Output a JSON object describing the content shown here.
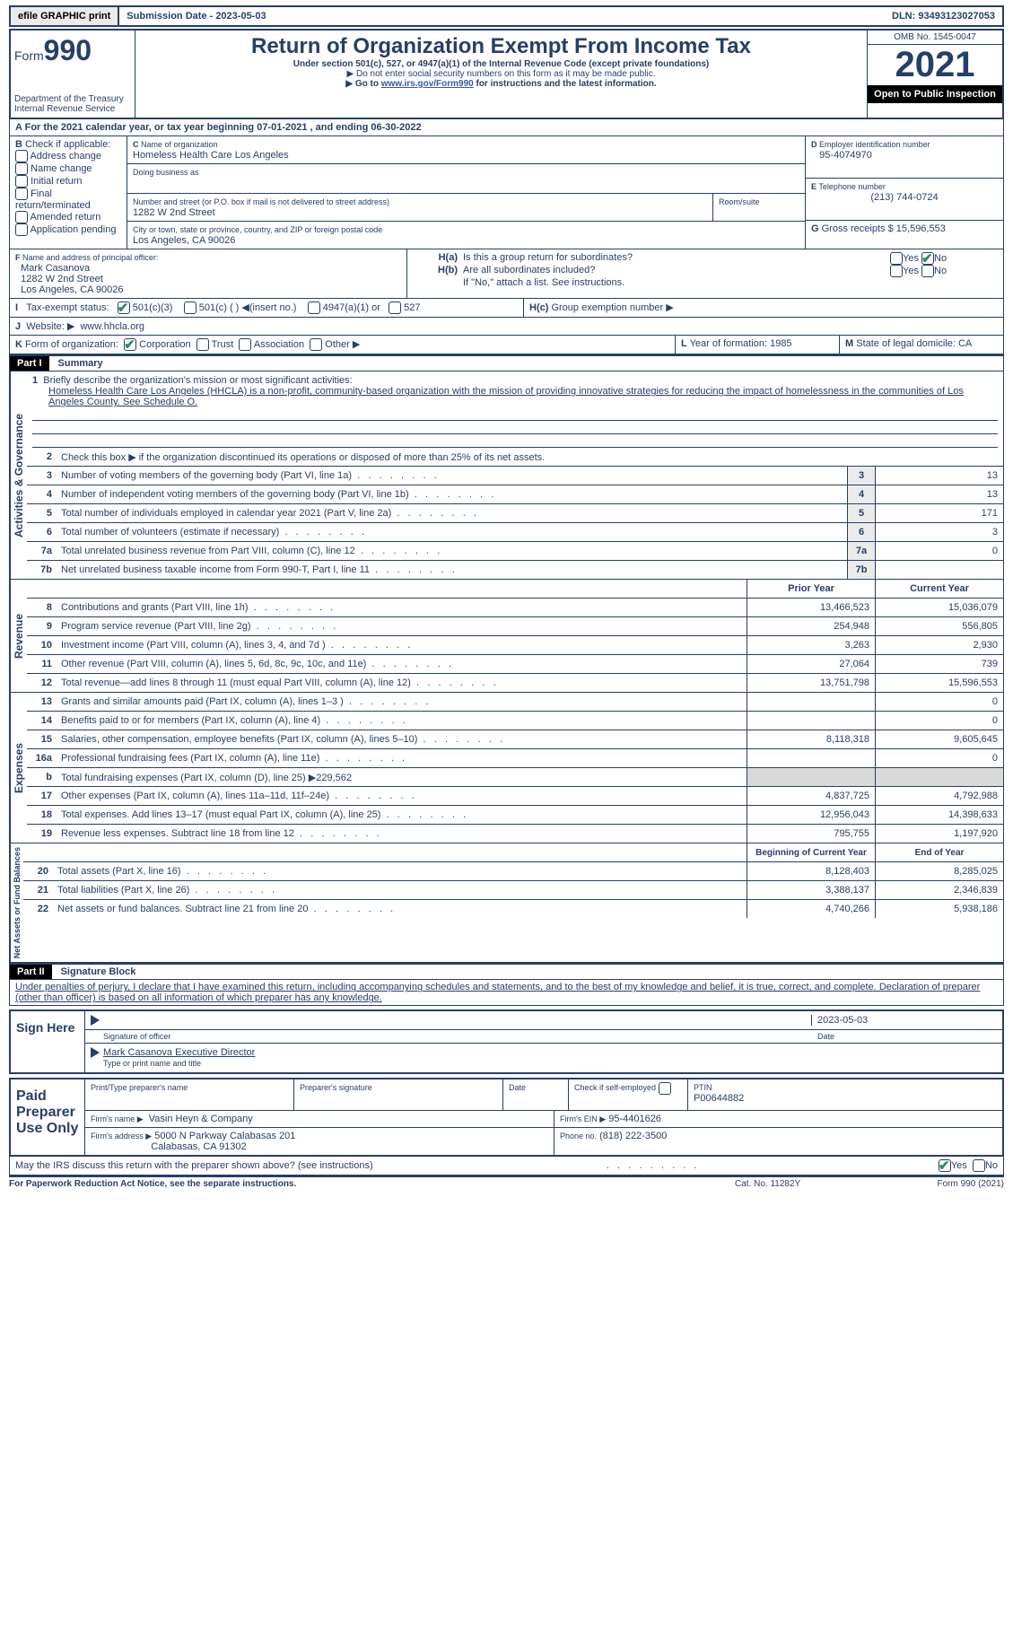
{
  "top": {
    "efile": "efile GRAPHIC print",
    "submission": "Submission Date - 2023-05-03",
    "dln": "DLN: 93493123027053"
  },
  "hdr": {
    "form": "Form",
    "n990": "990",
    "title": "Return of Organization Exempt From Income Tax",
    "sub1": "Under section 501(c), 527, or 4947(a)(1) of the Internal Revenue Code (except private foundations)",
    "sub2": "▶ Do not enter social security numbers on this form as it may be made public.",
    "sub3": "▶ Go to ",
    "link": "www.irs.gov/Form990",
    "sub3b": " for instructions and the latest information.",
    "dept": "Department of the Treasury",
    "irs": "Internal Revenue Service",
    "omb": "OMB No. 1545-0047",
    "yr": "2021",
    "inspect": "Open to Public Inspection"
  },
  "A": {
    "txt": "For the 2021 calendar year, or tax year beginning 07-01-2021    , and ending 06-30-2022"
  },
  "B": {
    "hdr": "Check if applicable:",
    "opts": [
      "Address change",
      "Name change",
      "Initial return",
      "Final return/terminated",
      "Amended return",
      "Application pending"
    ]
  },
  "C": {
    "lbl": "Name of organization",
    "org": "Homeless Health Care Los Angeles",
    "dba": "Doing business as",
    "addr_lbl": "Number and street (or P.O. box if mail is not delivered to street address)",
    "addr": "1282 W 2nd Street",
    "room": "Room/suite",
    "city_lbl": "City or town, state or province, country, and ZIP or foreign postal code",
    "city": "Los Angeles, CA  90026"
  },
  "D": {
    "lbl": "Employer identification number",
    "val": "95-4074970"
  },
  "E": {
    "lbl": "Telephone number",
    "val": "(213) 744-0724"
  },
  "G": {
    "lbl": "Gross receipts $",
    "val": "15,596,553"
  },
  "F": {
    "lbl": "Name and address of principal officer:",
    "name": "Mark Casanova",
    "addr": "1282 W 2nd Street",
    "city": "Los Angeles, CA  90026"
  },
  "H": {
    "a": "Is this a group return for subordinates?",
    "b": "Are all subordinates included?",
    "note": "If \"No,\" attach a list. See instructions.",
    "c": "Group exemption number ▶",
    "yes": "Yes",
    "no": "No"
  },
  "I": {
    "lbl": "Tax-exempt status:",
    "a": "501(c)(3)",
    "b": "501(c) (  ) ◀(insert no.)",
    "c": "4947(a)(1) or",
    "d": "527"
  },
  "J": {
    "lbl": "Website: ▶",
    "val": "www.hhcla.org"
  },
  "K": {
    "lbl": "Form of organization:",
    "a": "Corporation",
    "b": "Trust",
    "c": "Association",
    "d": "Other ▶"
  },
  "L": {
    "lbl": "Year of formation:",
    "val": "1985"
  },
  "M": {
    "lbl": "State of legal domicile:",
    "val": "CA"
  },
  "part1": {
    "bar": "Part I",
    "lbl": "Summary"
  },
  "s1": {
    "lbl": "Briefly describe the organization's mission or most significant activities:",
    "txt": "Homeless Health Care Los Angeles (HHCLA) is a non-profit, community-based organization with the mission of providing innovative strategies for reducing the impact of homelessness in the communities of Los Angeles County. See Schedule O."
  },
  "s2": "Check this box ▶        if the organization discontinued its operations or disposed of more than 25% of its net assets.",
  "lines": {
    "3": {
      "t": "Number of voting members of the governing body (Part VI, line 1a)",
      "v": "13"
    },
    "4": {
      "t": "Number of independent voting members of the governing body (Part VI, line 1b)",
      "v": "13"
    },
    "5": {
      "t": "Total number of individuals employed in calendar year 2021 (Part V, line 2a)",
      "v": "171"
    },
    "6": {
      "t": "Total number of volunteers (estimate if necessary)",
      "v": "3"
    },
    "7a": {
      "t": "Total unrelated business revenue from Part VIII, column (C), line 12",
      "v": "0"
    },
    "7b": {
      "t": "Net unrelated business taxable income from Form 990-T, Part I, line 11",
      "v": ""
    }
  },
  "colhdr": {
    "prior": "Prior Year",
    "current": "Current Year"
  },
  "rev": [
    {
      "n": "8",
      "t": "Contributions and grants (Part VIII, line 1h)",
      "p": "13,466,523",
      "c": "15,036,079"
    },
    {
      "n": "9",
      "t": "Program service revenue (Part VIII, line 2g)",
      "p": "254,948",
      "c": "556,805"
    },
    {
      "n": "10",
      "t": "Investment income (Part VIII, column (A), lines 3, 4, and 7d )",
      "p": "3,263",
      "c": "2,930"
    },
    {
      "n": "11",
      "t": "Other revenue (Part VIII, column (A), lines 5, 6d, 8c, 9c, 10c, and 11e)",
      "p": "27,064",
      "c": "739"
    },
    {
      "n": "12",
      "t": "Total revenue—add lines 8 through 11 (must equal Part VIII, column (A), line 12)",
      "p": "13,751,798",
      "c": "15,596,553"
    }
  ],
  "exp": [
    {
      "n": "13",
      "t": "Grants and similar amounts paid (Part IX, column (A), lines 1–3 )",
      "p": "",
      "c": "0"
    },
    {
      "n": "14",
      "t": "Benefits paid to or for members (Part IX, column (A), line 4)",
      "p": "",
      "c": "0"
    },
    {
      "n": "15",
      "t": "Salaries, other compensation, employee benefits (Part IX, column (A), lines 5–10)",
      "p": "8,118,318",
      "c": "9,605,645"
    },
    {
      "n": "16a",
      "t": "Professional fundraising fees (Part IX, column (A), line 11e)",
      "p": "",
      "c": "0"
    },
    {
      "n": "b",
      "t": "Total fundraising expenses (Part IX, column (D), line 25) ▶229,562",
      "p": "shade",
      "c": "shade"
    },
    {
      "n": "17",
      "t": "Other expenses (Part IX, column (A), lines 11a–11d, 11f–24e)",
      "p": "4,837,725",
      "c": "4,792,988"
    },
    {
      "n": "18",
      "t": "Total expenses. Add lines 13–17 (must equal Part IX, column (A), line 25)",
      "p": "12,956,043",
      "c": "14,398,633"
    },
    {
      "n": "19",
      "t": "Revenue less expenses. Subtract line 18 from line 12",
      "p": "795,755",
      "c": "1,197,920"
    }
  ],
  "colhdr2": {
    "prior": "Beginning of Current Year",
    "current": "End of Year"
  },
  "net": [
    {
      "n": "20",
      "t": "Total assets (Part X, line 16)",
      "p": "8,128,403",
      "c": "8,285,025"
    },
    {
      "n": "21",
      "t": "Total liabilities (Part X, line 26)",
      "p": "3,388,137",
      "c": "2,346,839"
    },
    {
      "n": "22",
      "t": "Net assets or fund balances. Subtract line 21 from line 20",
      "p": "4,740,266",
      "c": "5,938,186"
    }
  ],
  "sides": {
    "act": "Activities & Governance",
    "rev": "Revenue",
    "exp": "Expenses",
    "net": "Net Assets or Fund Balances"
  },
  "part2": {
    "bar": "Part II",
    "lbl": "Signature Block",
    "decl": "Under penalties of perjury, I declare that I have examined this return, including accompanying schedules and statements, and to the best of my knowledge and belief, it is true, correct, and complete. Declaration of preparer (other than officer) is based on all information of which preparer has any knowledge."
  },
  "sign": {
    "here": "Sign Here",
    "sigoff": "Signature of officer",
    "date": "Date",
    "dateval": "2023-05-03",
    "name": "Mark Casanova  Executive Director",
    "typelbl": "Type or print name and title"
  },
  "paid": {
    "lbl": "Paid Preparer Use Only",
    "pn": "Print/Type preparer's name",
    "ps": "Preparer's signature",
    "dt": "Date",
    "chk": "Check          if self-employed",
    "ptin": "PTIN",
    "ptinval": "P00644882",
    "firm": "Firm's name   ▶",
    "firmval": "Vasin Heyn & Company",
    "ein": "Firm's EIN ▶",
    "einval": "95-4401626",
    "addr": "Firm's address ▶",
    "addrval": "5000 N Parkway Calabasas 201",
    "city": "Calabasas, CA  91302",
    "phone": "Phone no.",
    "phoneval": "(818) 222-3500"
  },
  "discuss": "May the IRS discuss this return with the preparer shown above? (see instructions)",
  "foot": {
    "a": "For Paperwork Reduction Act Notice, see the separate instructions.",
    "b": "Cat. No. 11282Y",
    "c": "Form 990 (2021)"
  }
}
